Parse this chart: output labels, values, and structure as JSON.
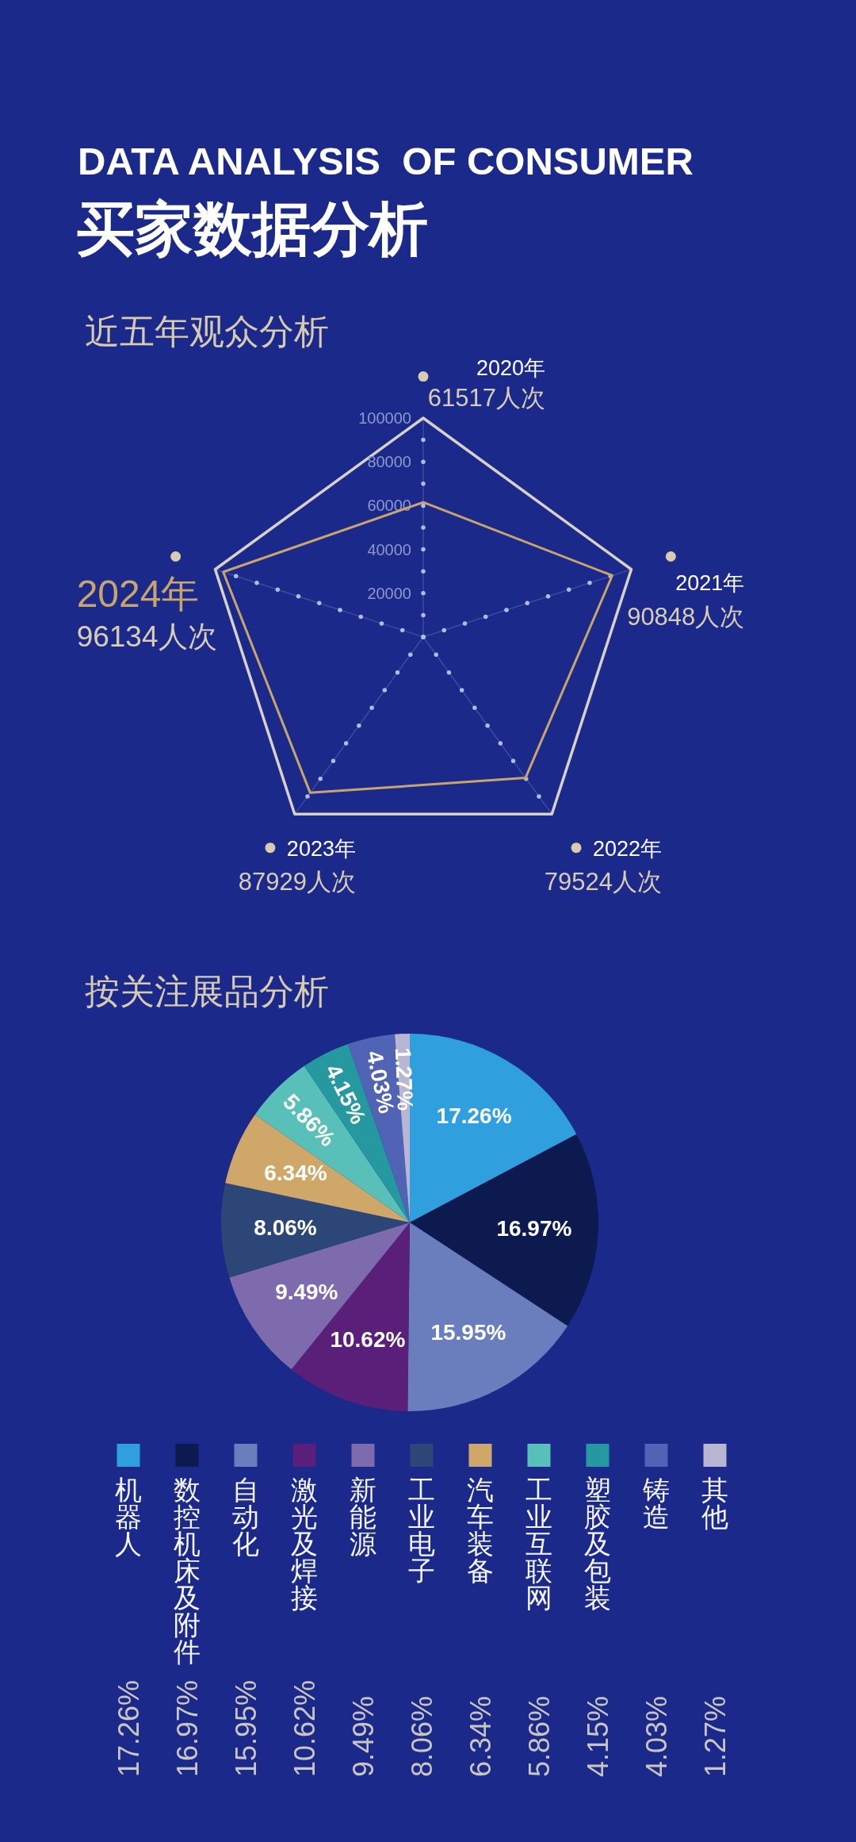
{
  "chart_data": [
    {
      "type": "other",
      "title": "DATA ANALYSIS  OF CONSUMER",
      "subtitle": "买家数据分析"
    },
    {
      "type": "radar",
      "title": "近五年观众分析",
      "categories": [
        "2020年",
        "2021年",
        "2022年",
        "2023年",
        "2024年"
      ],
      "series": [
        {
          "color": "#c9a46c",
          "values": [
            61517,
            90848,
            79524,
            87929,
            96134
          ]
        }
      ],
      "annotations": [
        "61517人次",
        "90848人次",
        "79524人次",
        "87929人次",
        "96134人次"
      ],
      "ylim": [
        0,
        100000
      ],
      "yticks": [
        20000,
        40000,
        60000,
        80000,
        100000
      ],
      "grid": true
    },
    {
      "type": "pie",
      "title": "按关注展品分析",
      "categories": [
        "机器人",
        "数控机床及附件",
        "自动化",
        "激光及焊接",
        "新能源",
        "工业电子",
        "汽车装备",
        "工业互联网",
        "塑胶及包装",
        "铸造",
        "其他"
      ],
      "values": [
        17.26,
        16.97,
        15.95,
        10.62,
        9.49,
        8.06,
        6.34,
        5.86,
        4.15,
        4.03,
        1.27
      ],
      "colors": [
        "#2f9fdd",
        "#0d1a4f",
        "#6a7ebd",
        "#5a1f78",
        "#7d6bae",
        "#2c4677",
        "#cfa769",
        "#58c0b8",
        "#25999f",
        "#5063b4",
        "#b8b6d2"
      ],
      "value_labels": [
        "17.26%",
        "16.97%",
        "15.95%",
        "10.62%",
        "9.49%",
        "8.06%",
        "6.34%",
        "5.86%",
        "4.15%",
        "4.03%",
        "1.27%"
      ],
      "legend": "bottom"
    }
  ]
}
